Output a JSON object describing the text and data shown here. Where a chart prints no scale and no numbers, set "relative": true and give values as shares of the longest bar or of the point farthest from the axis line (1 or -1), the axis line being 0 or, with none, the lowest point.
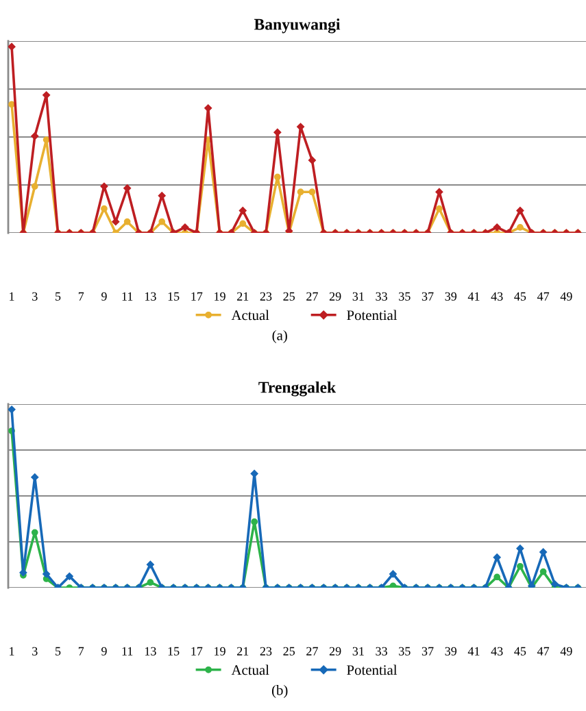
{
  "chart_data": [
    {
      "type": "line",
      "title": "Banyuwangi",
      "relative": true,
      "grid": "y",
      "legend": "bottom",
      "annotations": [
        "(a)"
      ],
      "categories": [
        "1",
        null,
        "3",
        null,
        "5",
        null,
        "7",
        null,
        "9",
        null,
        "11",
        null,
        "13",
        null,
        "15",
        null,
        "17",
        null,
        "19",
        null,
        "21",
        null,
        "23",
        null,
        "25",
        null,
        "27",
        null,
        "29",
        null,
        "31",
        null,
        "33",
        null,
        "35",
        null,
        "37",
        null,
        "39",
        null,
        "41",
        null,
        "43",
        null,
        "45",
        null,
        "47",
        null,
        "49",
        null
      ],
      "series": [
        {
          "name": "Actual",
          "color": "#e8b030",
          "marker": "circle",
          "values": [
            0.69,
            0,
            0.25,
            0.5,
            0,
            0,
            0,
            0,
            0.13,
            0,
            0.06,
            0,
            0,
            0.06,
            0,
            0,
            0,
            0.5,
            0,
            0,
            0.05,
            0,
            0,
            0.3,
            0,
            0.22,
            0.22,
            0,
            0,
            0,
            0,
            0,
            0,
            0,
            0,
            0,
            0,
            0.13,
            0,
            0,
            0,
            0,
            0,
            0,
            0.03,
            0,
            0,
            0,
            0,
            0
          ]
        },
        {
          "name": "Potential",
          "color": "#be1e22",
          "marker": "diamond",
          "values": [
            1,
            0,
            0.52,
            0.74,
            0,
            0,
            0,
            0,
            0.25,
            0.06,
            0.24,
            0,
            0,
            0.2,
            0,
            0.03,
            0,
            0.67,
            0,
            0,
            0.12,
            0,
            0,
            0.54,
            0.01,
            0.57,
            0.39,
            0,
            0,
            0,
            0,
            0,
            0,
            0,
            0,
            0,
            0,
            0.22,
            0,
            0,
            0,
            0,
            0.03,
            0,
            0.12,
            0,
            0,
            0,
            0,
            0
          ]
        }
      ]
    },
    {
      "type": "line",
      "title": "Trenggalek",
      "relative": true,
      "grid": "y",
      "legend": "bottom",
      "annotations": [
        "(b)"
      ],
      "categories": [
        "1",
        null,
        "3",
        null,
        "5",
        null,
        "7",
        null,
        "9",
        null,
        "11",
        null,
        "13",
        null,
        "15",
        null,
        "17",
        null,
        "19",
        null,
        "21",
        null,
        "23",
        null,
        "25",
        null,
        "27",
        null,
        "29",
        null,
        "31",
        null,
        "33",
        null,
        "35",
        null,
        "37",
        null,
        "39",
        null,
        "41",
        null,
        "43",
        null,
        "45",
        null,
        "47",
        null,
        "49",
        null
      ],
      "series": [
        {
          "name": "Actual",
          "color": "#2db34a",
          "marker": "circle",
          "values": [
            0.88,
            0.07,
            0.31,
            0.05,
            0,
            0,
            0,
            0,
            0,
            0,
            0,
            0,
            0.03,
            0,
            0,
            0,
            0,
            0,
            0,
            0,
            0,
            0.37,
            0,
            0,
            0,
            0,
            0,
            0,
            0,
            0,
            0,
            0,
            0,
            0.01,
            0,
            0,
            0,
            0,
            0,
            0,
            0,
            0,
            0.06,
            0,
            0.12,
            0,
            0.09,
            0,
            0,
            0
          ]
        },
        {
          "name": "Potential",
          "color": "#1769b8",
          "marker": "diamond",
          "values": [
            1,
            0.085,
            0.62,
            0.077,
            0,
            0.064,
            0,
            0,
            0,
            0,
            0,
            0,
            0.13,
            0,
            0,
            0,
            0,
            0,
            0,
            0,
            0,
            0.64,
            0,
            0,
            0,
            0,
            0,
            0,
            0,
            0,
            0,
            0,
            0,
            0.077,
            0,
            0,
            0,
            0,
            0,
            0,
            0,
            0,
            0.17,
            0,
            0.22,
            0.01,
            0.2,
            0.02,
            0,
            0
          ]
        }
      ]
    }
  ]
}
